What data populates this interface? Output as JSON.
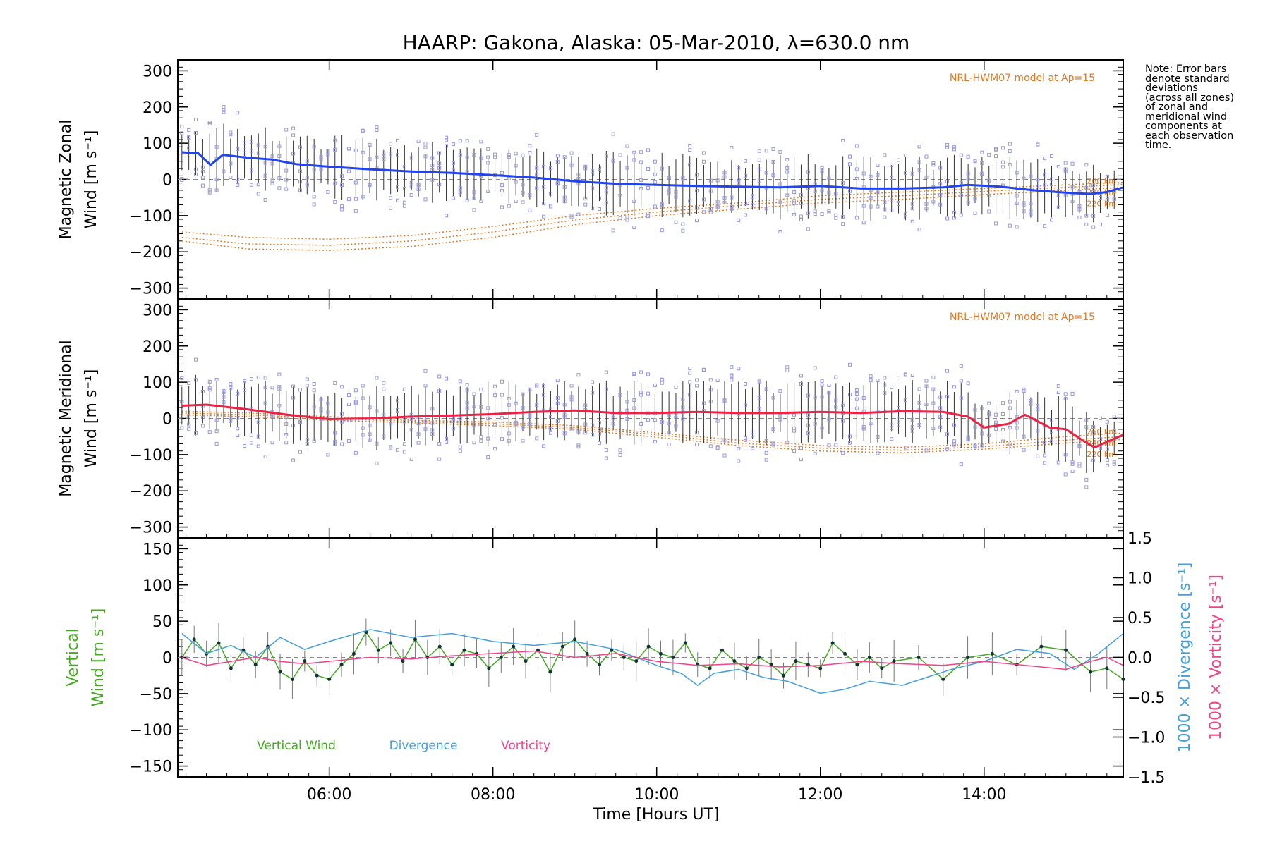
{
  "chart_data": {
    "title": "HAARP: Gakona,  Alaska: 05-Mar-2010, λ=630.0 nm",
    "xlabel": "Time [Hours UT]",
    "x_tick_labels": [
      "06:00",
      "08:00",
      "10:00",
      "12:00",
      "14:00"
    ],
    "x_ticks_hours": [
      6,
      8,
      10,
      12,
      14
    ],
    "xlim_hours": [
      4.15,
      15.7
    ],
    "note_lines": [
      "Note: Error bars",
      "denote standard",
      "deviations",
      "(across all zones)",
      "of zonal and",
      "meridional wind",
      "components at",
      "each observation",
      "time."
    ],
    "colors": {
      "zonal": "#2244ee",
      "meridional": "#ee2244",
      "vertical": "#44aa22",
      "divergence": "#44a0dd",
      "vorticity": "#ee4488",
      "model": "#e07a20",
      "samples": "#9999dd",
      "errorbar": "#333333"
    },
    "panels": [
      {
        "type": "line",
        "ylabel_lines": [
          "Magnetic Zonal",
          "Wind [m s⁻¹]"
        ],
        "ylim": [
          -330,
          330
        ],
        "y_ticks": [
          -300,
          -200,
          -100,
          0,
          100,
          200,
          300
        ],
        "model_label": "NRL-HWM07 model at Ap=15",
        "model_alt_labels": [
          "260 km",
          "240 km",
          "220 km"
        ],
        "series": [
          {
            "key": "zonal",
            "x": [
              4.2,
              4.4,
              4.55,
              4.7,
              5.0,
              5.3,
              5.6,
              6.0,
              6.5,
              7.0,
              7.5,
              8.0,
              8.5,
              9.0,
              9.5,
              10.0,
              10.5,
              11.0,
              11.5,
              12.0,
              12.5,
              13.0,
              13.5,
              13.8,
              14.2,
              14.6,
              14.9,
              15.1,
              15.3,
              15.5,
              15.7
            ],
            "values": [
              75,
              72,
              40,
              68,
              60,
              55,
              42,
              35,
              28,
              22,
              18,
              12,
              5,
              -5,
              -12,
              -15,
              -18,
              -20,
              -22,
              -18,
              -25,
              -25,
              -22,
              -15,
              -20,
              -30,
              -35,
              -38,
              -40,
              -35,
              -22
            ]
          }
        ],
        "model_lines": [
          {
            "x": [
              4.2,
              5.0,
              6.0,
              7.0,
              8.0,
              9.0,
              10.0,
              11.0,
              12.0,
              13.0,
              14.0,
              15.0,
              15.7
            ],
            "values": [
              -145,
              -160,
              -165,
              -155,
              -130,
              -100,
              -80,
              -65,
              -45,
              -35,
              -25,
              -15,
              -8
            ]
          },
          {
            "x": [
              4.2,
              5.0,
              6.0,
              7.0,
              8.0,
              9.0,
              10.0,
              11.0,
              12.0,
              13.0,
              14.0,
              15.0,
              15.7
            ],
            "values": [
              -160,
              -178,
              -182,
              -170,
              -145,
              -112,
              -90,
              -72,
              -55,
              -45,
              -33,
              -22,
              -14
            ]
          },
          {
            "x": [
              4.2,
              5.0,
              6.0,
              7.0,
              8.0,
              9.0,
              10.0,
              11.0,
              12.0,
              13.0,
              14.0,
              15.0,
              15.7
            ],
            "values": [
              -170,
              -192,
              -196,
              -185,
              -160,
              -125,
              -100,
              -82,
              -65,
              -55,
              -42,
              -30,
              -22
            ]
          }
        ]
      },
      {
        "type": "line",
        "ylabel_lines": [
          "Magnetic Meridional",
          "Wind [m s⁻¹]"
        ],
        "ylim": [
          -330,
          330
        ],
        "y_ticks": [
          -300,
          -200,
          -100,
          0,
          100,
          200,
          300
        ],
        "model_label": "NRL-HWM07 model at Ap=15",
        "model_alt_labels": [
          "260 km",
          "240 km",
          "220 km"
        ],
        "series": [
          {
            "key": "meridional",
            "x": [
              4.2,
              4.5,
              5.0,
              5.5,
              6.0,
              6.5,
              7.0,
              7.5,
              8.0,
              8.5,
              9.0,
              9.5,
              10.0,
              10.5,
              11.0,
              11.5,
              12.0,
              12.5,
              13.0,
              13.5,
              13.8,
              14.0,
              14.3,
              14.5,
              14.8,
              15.0,
              15.2,
              15.35,
              15.5,
              15.7
            ],
            "values": [
              35,
              38,
              25,
              10,
              -2,
              0,
              5,
              8,
              12,
              18,
              22,
              15,
              15,
              18,
              15,
              15,
              18,
              15,
              20,
              18,
              5,
              -25,
              -15,
              10,
              -25,
              -30,
              -60,
              -80,
              -65,
              -45
            ]
          }
        ],
        "model_lines": [
          {
            "x": [
              4.2,
              5.0,
              6.0,
              7.0,
              8.0,
              9.0,
              10.0,
              11.0,
              12.0,
              13.0,
              14.0,
              15.0,
              15.7
            ],
            "values": [
              20,
              15,
              5,
              -5,
              -10,
              -20,
              -40,
              -60,
              -75,
              -80,
              -70,
              -50,
              -40
            ]
          },
          {
            "x": [
              4.2,
              5.0,
              6.0,
              7.0,
              8.0,
              9.0,
              10.0,
              11.0,
              12.0,
              13.0,
              14.0,
              15.0,
              15.7
            ],
            "values": [
              15,
              10,
              0,
              -8,
              -15,
              -25,
              -45,
              -68,
              -82,
              -88,
              -78,
              -60,
              -50
            ]
          },
          {
            "x": [
              4.2,
              5.0,
              6.0,
              7.0,
              8.0,
              9.0,
              10.0,
              11.0,
              12.0,
              13.0,
              14.0,
              15.0,
              15.7
            ],
            "values": [
              10,
              5,
              -5,
              -12,
              -20,
              -30,
              -52,
              -75,
              -90,
              -95,
              -85,
              -68,
              -58
            ]
          }
        ]
      },
      {
        "type": "line",
        "ylabel_lines": [
          "Vertical",
          "Wind [m s⁻¹]"
        ],
        "right_ylabel_divergence": "1000 × Divergence [s⁻¹]",
        "right_ylabel_vorticity": "1000 × Vorticity [s⁻¹]",
        "ylim": [
          -165,
          165
        ],
        "y_ticks": [
          -150,
          -100,
          -50,
          0,
          50,
          100,
          150
        ],
        "right_ylim": [
          -1.5,
          1.5
        ],
        "right_y_ticks": [
          -1.5,
          -1.0,
          -0.5,
          0.0,
          0.5,
          1.0,
          1.5
        ],
        "legend": [
          "Vertical Wind",
          "Divergence",
          "Vorticity"
        ],
        "series": [
          {
            "key": "vertical",
            "name": "Vertical Wind",
            "axis": "left",
            "x": [
              4.2,
              4.35,
              4.5,
              4.65,
              4.8,
              4.95,
              5.1,
              5.25,
              5.4,
              5.55,
              5.7,
              5.85,
              6.0,
              6.15,
              6.3,
              6.45,
              6.6,
              6.75,
              6.9,
              7.05,
              7.2,
              7.35,
              7.5,
              7.65,
              7.8,
              7.95,
              8.1,
              8.25,
              8.4,
              8.55,
              8.7,
              8.85,
              9.0,
              9.15,
              9.3,
              9.45,
              9.6,
              9.75,
              9.9,
              10.05,
              10.2,
              10.35,
              10.5,
              10.65,
              10.8,
              10.95,
              11.1,
              11.25,
              11.4,
              11.55,
              11.7,
              11.85,
              12.0,
              12.15,
              12.3,
              12.45,
              12.6,
              12.75,
              12.9,
              13.2,
              13.5,
              13.8,
              14.1,
              14.4,
              14.7,
              15.0,
              15.3,
              15.5,
              15.7
            ],
            "values": [
              0,
              25,
              5,
              20,
              -15,
              10,
              -10,
              15,
              -20,
              -30,
              -5,
              -25,
              -30,
              -10,
              5,
              35,
              10,
              20,
              -5,
              25,
              0,
              15,
              -10,
              10,
              5,
              -15,
              0,
              15,
              -5,
              10,
              -20,
              15,
              25,
              5,
              -10,
              10,
              0,
              -5,
              15,
              5,
              0,
              20,
              -10,
              -15,
              10,
              -5,
              -15,
              0,
              -10,
              -25,
              -5,
              -10,
              -15,
              20,
              5,
              -10,
              0,
              -15,
              -5,
              0,
              -30,
              0,
              5,
              -10,
              15,
              10,
              -20,
              -15,
              -30
            ]
          },
          {
            "key": "divergence",
            "name": "Divergence",
            "axis": "right",
            "x": [
              4.2,
              4.5,
              4.8,
              5.1,
              5.4,
              5.7,
              6.0,
              6.5,
              7.0,
              7.5,
              8.0,
              8.5,
              9.0,
              9.5,
              10.0,
              10.3,
              10.5,
              10.7,
              11.0,
              11.3,
              11.6,
              12.0,
              12.3,
              12.6,
              13.0,
              13.3,
              13.6,
              14.0,
              14.4,
              14.8,
              15.1,
              15.4,
              15.7
            ],
            "values": [
              0.3,
              0.05,
              0.15,
              0.0,
              0.25,
              0.1,
              0.2,
              0.35,
              0.25,
              0.3,
              0.2,
              0.15,
              0.2,
              0.1,
              -0.1,
              -0.2,
              -0.35,
              -0.2,
              -0.15,
              -0.25,
              -0.3,
              -0.45,
              -0.4,
              -0.3,
              -0.35,
              -0.25,
              -0.15,
              -0.05,
              0.1,
              0.05,
              -0.15,
              0.05,
              0.3
            ]
          },
          {
            "key": "vorticity",
            "name": "Vorticity",
            "axis": "right",
            "x": [
              4.2,
              4.5,
              4.8,
              5.1,
              5.4,
              5.7,
              6.0,
              6.5,
              7.0,
              7.5,
              8.0,
              8.5,
              9.0,
              9.5,
              10.0,
              10.5,
              11.0,
              11.5,
              12.0,
              12.5,
              13.0,
              13.5,
              14.0,
              14.5,
              15.0,
              15.3,
              15.5,
              15.7
            ],
            "values": [
              0.0,
              -0.1,
              -0.05,
              0.0,
              -0.05,
              -0.08,
              -0.05,
              0.0,
              -0.02,
              0.02,
              0.05,
              0.08,
              0.0,
              0.05,
              -0.05,
              -0.1,
              -0.08,
              -0.12,
              -0.1,
              -0.05,
              -0.08,
              -0.1,
              -0.05,
              -0.1,
              -0.15,
              -0.05,
              0.0,
              -0.1
            ]
          }
        ]
      }
    ]
  }
}
